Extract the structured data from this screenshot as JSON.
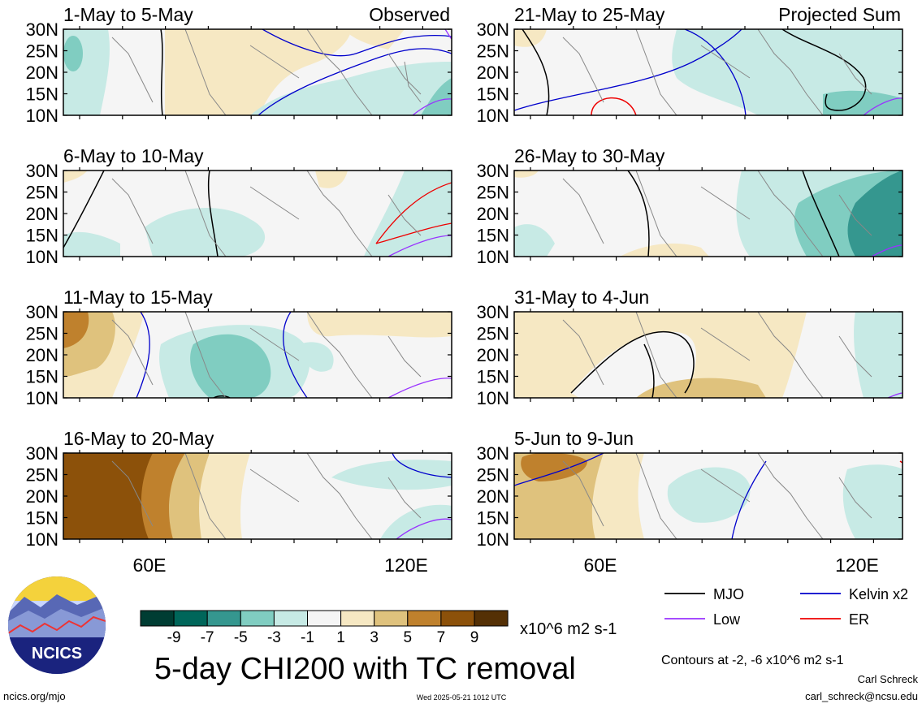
{
  "panels": [
    {
      "title": "1-May to 5-May",
      "tag": "Observed"
    },
    {
      "title": "6-May to 10-May",
      "tag": ""
    },
    {
      "title": "11-May to 15-May",
      "tag": ""
    },
    {
      "title": "16-May to 20-May",
      "tag": ""
    },
    {
      "title": "21-May to 25-May",
      "tag": "Projected Sum"
    },
    {
      "title": "26-May to 30-May",
      "tag": ""
    },
    {
      "title": "31-May to 4-Jun",
      "tag": ""
    },
    {
      "title": "5-Jun to 9-Jun",
      "tag": ""
    }
  ],
  "lat_labels": [
    "30N",
    "25N",
    "20N",
    "15N",
    "10N"
  ],
  "lon_labels": [
    "60E",
    "120E"
  ],
  "colorbar": {
    "colors": [
      "#003d33",
      "#00665a",
      "#35978f",
      "#80cdc1",
      "#c7eae5",
      "#f5f5f5",
      "#f6e8c3",
      "#dfc27d",
      "#bf812d",
      "#8c510a",
      "#543005"
    ],
    "tick_labels": [
      "-9",
      "-7",
      "-5",
      "-3",
      "-1",
      "1",
      "3",
      "5",
      "7",
      "9"
    ],
    "units": "x10^6 m2 s-1"
  },
  "title": "5-day CHI200 with TC removal",
  "legend": [
    {
      "label": "MJO",
      "color": "#000000"
    },
    {
      "label": "Kelvin x2",
      "color": "#0000dd"
    },
    {
      "label": "Low",
      "color": "#9933ff"
    },
    {
      "label": "ER",
      "color": "#ee0000"
    }
  ],
  "contour_note": "Contours at -2, -6 x10^6 m2 s-1",
  "author": "Carl Schreck",
  "email": "carl_schreck@ncsu.edu",
  "site": "ncics.org/mjo",
  "timestamp": "Wed 2025-05-21 1012 UTC",
  "logo_text": "NCICS"
}
